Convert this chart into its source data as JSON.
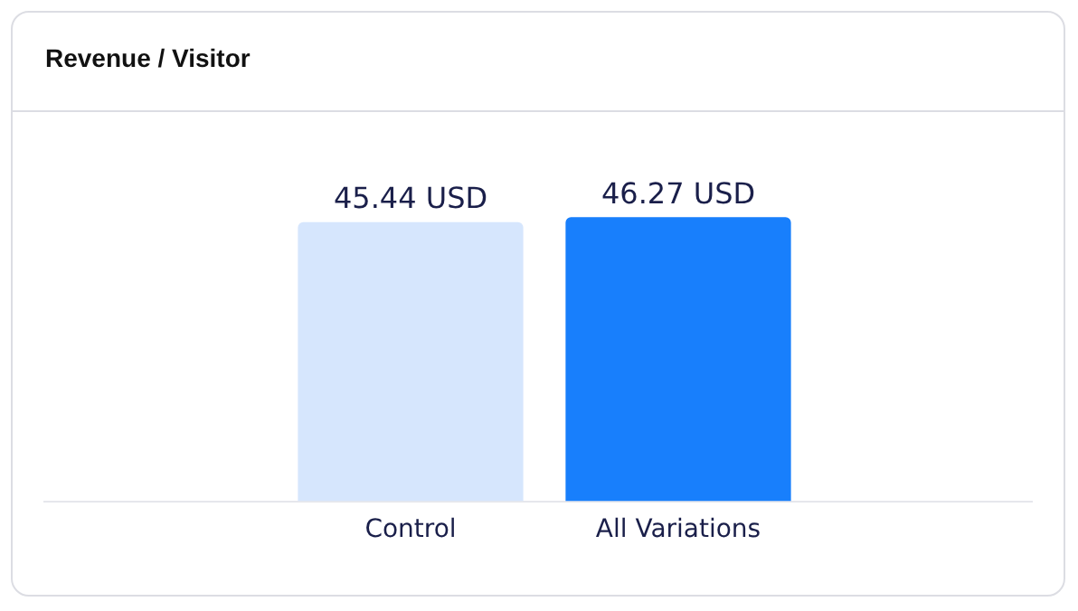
{
  "chart_data": {
    "type": "bar",
    "title": "Revenue / Visitor",
    "categories": [
      "Control",
      "All Variations"
    ],
    "values": [
      45.44,
      46.27
    ],
    "colors": [
      "#d6e6fd",
      "#187ffc"
    ],
    "value_labels": [
      "45.44 USD",
      "46.27 USD"
    ],
    "relative": false,
    "grid": false,
    "legend": false
  }
}
